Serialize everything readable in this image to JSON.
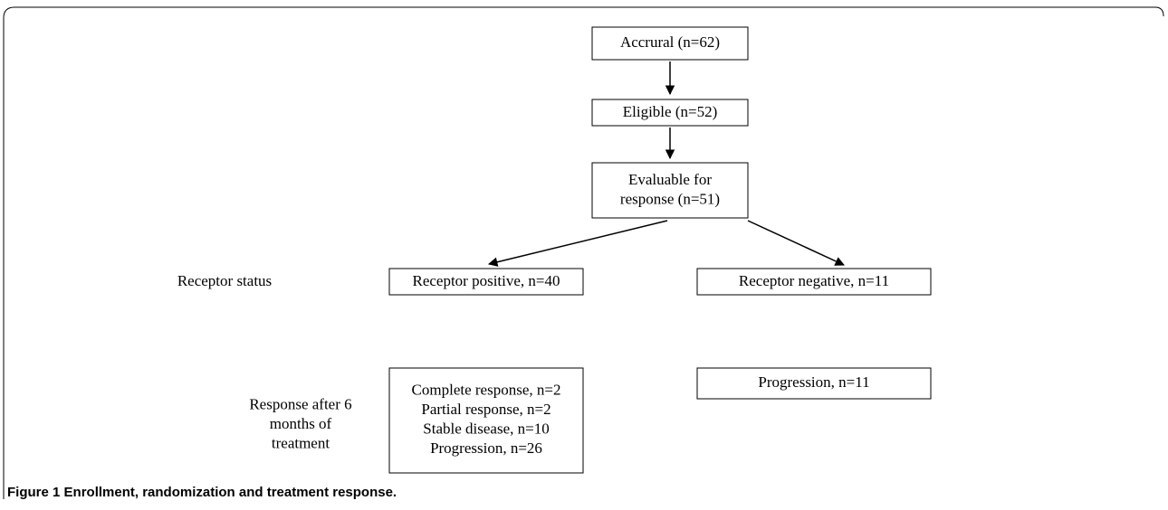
{
  "nodes": [
    {
      "lines": [
        "Accrural (n=62)"
      ]
    },
    {
      "lines": [
        "Eligible (n=52)"
      ]
    },
    {
      "lines": [
        "Evaluable for",
        "response (n=51)"
      ]
    },
    {
      "lines": [
        "Receptor positive, n=40"
      ]
    },
    {
      "lines": [
        "Receptor negative, n=11"
      ]
    },
    {
      "lines": [
        "Complete response, n=2",
        "Partial response, n=2",
        "Stable disease, n=10",
        "Progression, n=26"
      ]
    },
    {
      "lines": [
        "Progression, n=11"
      ]
    }
  ],
  "row_labels": [
    {
      "lines": [
        "Receptor status"
      ]
    },
    {
      "lines": [
        "Response after 6",
        "months of",
        "treatment"
      ]
    }
  ],
  "caption": {
    "label": "Figure 1",
    "text": "Enrollment, randomization and treatment response."
  }
}
